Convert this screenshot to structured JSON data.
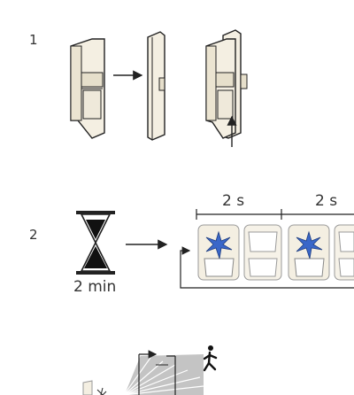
{
  "steps": [
    {
      "number": "1"
    },
    {
      "number": "2"
    }
  ],
  "timing": {
    "interval_1": "2 s",
    "interval_2": "2 s",
    "wait": "2 min"
  },
  "colors": {
    "device_body": "#f4efe2",
    "device_outline": "#222222",
    "flash": "#3a67c9",
    "coverage_fan": "#b9b9b9"
  }
}
